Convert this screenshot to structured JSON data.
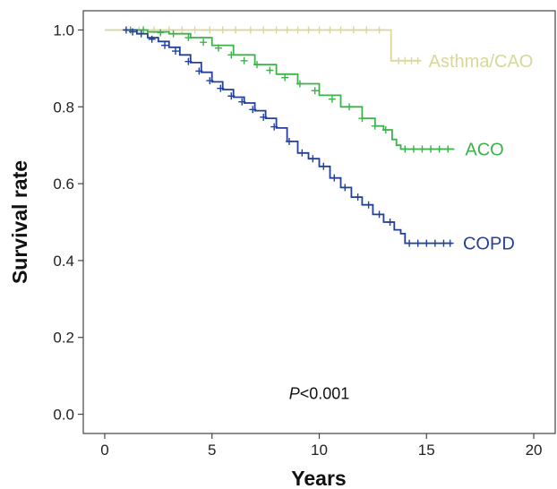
{
  "chart_data": {
    "type": "line",
    "subtype": "kaplan-meier",
    "xlabel": "Years",
    "ylabel": "Survival rate",
    "xlim": [
      -1,
      21
    ],
    "ylim": [
      -0.05,
      1.05
    ],
    "xticks": [
      "0",
      "5",
      "10",
      "15",
      "20"
    ],
    "yticks": [
      "0.0",
      "0.2",
      "0.4",
      "0.6",
      "0.8",
      "1.0"
    ],
    "grid": false,
    "legend": "inline labels at line ends",
    "annotation": {
      "prefix": "P",
      "rest": "<0.001",
      "x": 10,
      "y": 0.04
    },
    "series": [
      {
        "name": "Asthma/CAO",
        "color": "#d8d89a",
        "x": [
          0,
          13.35,
          13.35,
          14.7
        ],
        "y": [
          1.0,
          1.0,
          0.92,
          0.92
        ],
        "censor_x": [
          1.6,
          2.3,
          3.0,
          3.6,
          4.2,
          4.9,
          5.5,
          6.1,
          6.8,
          7.4,
          8.0,
          8.5,
          9.0,
          9.5,
          10.0,
          10.5,
          11.0,
          11.6,
          12.2,
          12.8,
          13.7,
          14.0,
          14.3,
          14.6
        ],
        "censor_y": [
          1.0,
          1.0,
          1.0,
          1.0,
          1.0,
          1.0,
          1.0,
          1.0,
          1.0,
          1.0,
          1.0,
          1.0,
          1.0,
          1.0,
          1.0,
          1.0,
          1.0,
          1.0,
          1.0,
          1.0,
          0.92,
          0.92,
          0.92,
          0.92
        ],
        "label_x": 15.1,
        "label_y": 0.92
      },
      {
        "name": "ACO",
        "color": "#3db24a",
        "x": [
          0.9,
          1.5,
          2.0,
          3.0,
          4.0,
          5.0,
          6.0,
          7.0,
          8.0,
          9.0,
          10.0,
          11.0,
          12.0,
          12.6,
          13.0,
          13.4,
          13.6,
          13.8,
          16.3
        ],
        "y": [
          1.0,
          1.0,
          0.995,
          0.99,
          0.98,
          0.96,
          0.935,
          0.91,
          0.885,
          0.86,
          0.83,
          0.8,
          0.77,
          0.75,
          0.74,
          0.715,
          0.7,
          0.69,
          0.69
        ],
        "censor_x": [
          1.2,
          1.8,
          2.6,
          3.2,
          3.9,
          4.6,
          5.3,
          5.9,
          6.5,
          7.1,
          7.7,
          8.4,
          9.1,
          9.8,
          10.6,
          11.4,
          12.0,
          12.6,
          13.1,
          14.0,
          14.4,
          14.8,
          15.2,
          15.6,
          16.0
        ],
        "censor_y": [
          1.0,
          1.0,
          0.993,
          0.99,
          0.98,
          0.968,
          0.953,
          0.935,
          0.92,
          0.91,
          0.895,
          0.876,
          0.86,
          0.842,
          0.82,
          0.8,
          0.77,
          0.75,
          0.74,
          0.69,
          0.69,
          0.69,
          0.69,
          0.69,
          0.69
        ],
        "label_x": 16.8,
        "label_y": 0.69
      },
      {
        "name": "COPD",
        "color": "#23409a",
        "x": [
          0.9,
          1.5,
          2.0,
          2.5,
          3.0,
          3.5,
          4.0,
          4.5,
          5.0,
          5.5,
          6.0,
          6.5,
          7.0,
          7.5,
          8.0,
          8.5,
          9.0,
          9.5,
          10.0,
          10.5,
          11.0,
          11.5,
          12.0,
          12.5,
          13.0,
          13.5,
          13.8,
          14.0,
          16.2
        ],
        "y": [
          1.0,
          0.99,
          0.98,
          0.97,
          0.955,
          0.935,
          0.915,
          0.89,
          0.865,
          0.845,
          0.825,
          0.81,
          0.79,
          0.77,
          0.745,
          0.71,
          0.68,
          0.665,
          0.645,
          0.615,
          0.59,
          0.565,
          0.545,
          0.52,
          0.5,
          0.48,
          0.47,
          0.445,
          0.445
        ],
        "censor_x": [
          1.0,
          1.3,
          1.7,
          2.2,
          2.8,
          3.3,
          3.9,
          4.4,
          4.9,
          5.4,
          5.9,
          6.4,
          6.9,
          7.4,
          7.9,
          8.6,
          9.2,
          9.7,
          10.2,
          10.7,
          11.2,
          11.8,
          12.3,
          12.8,
          13.3,
          14.2,
          14.6,
          15.0,
          15.4,
          15.8,
          16.1
        ],
        "censor_y": [
          1.0,
          0.995,
          0.99,
          0.976,
          0.96,
          0.945,
          0.918,
          0.893,
          0.868,
          0.848,
          0.828,
          0.813,
          0.793,
          0.773,
          0.748,
          0.71,
          0.68,
          0.665,
          0.645,
          0.615,
          0.59,
          0.565,
          0.545,
          0.52,
          0.5,
          0.445,
          0.445,
          0.445,
          0.445,
          0.445,
          0.445
        ],
        "label_x": 16.7,
        "label_y": 0.445
      }
    ]
  }
}
